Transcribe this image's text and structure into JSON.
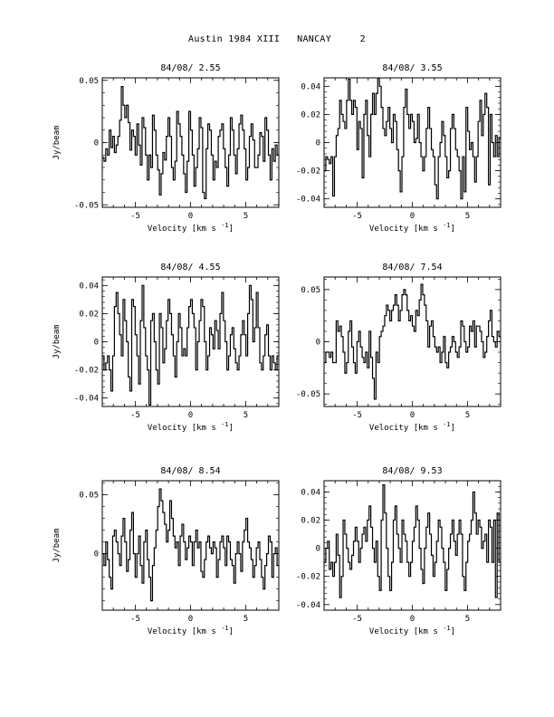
{
  "page_title": "Austin 1984 XIII   NANCAY     2",
  "chart_data": [
    {
      "type": "line",
      "title": "84/08/ 2.55",
      "xlabel": "Velocity [km s",
      "xlabel_sup": "-1",
      "xlabel_close": "]",
      "ylabel": "Jy/beam",
      "xlim": [
        -8,
        8
      ],
      "ylim": [
        -0.052,
        0.052
      ],
      "xticks": [
        {
          "v": -5,
          "label": "-5"
        },
        {
          "v": 0,
          "label": "0"
        },
        {
          "v": 5,
          "label": "5"
        }
      ],
      "yticks": [
        {
          "v": 0.05,
          "label": "0.05"
        },
        {
          "v": 0,
          "label": "0"
        },
        {
          "v": -0.05,
          "label": "-0.05"
        }
      ],
      "series": [
        {
          "values": [
            -0.012,
            -0.015,
            -0.005,
            -0.01,
            0.01,
            -0.004,
            0.005,
            -0.008,
            -0.002,
            0.005,
            0.018,
            0.045,
            0.03,
            0.02,
            0.03,
            0.016,
            -0.006,
            0.01,
            0.005,
            -0.01,
            0.015,
            -0.002,
            -0.018,
            0.02,
            0.012,
            -0.01,
            -0.03,
            -0.01,
            -0.02,
            0.022,
            0.01,
            -0.01,
            -0.022,
            -0.042,
            -0.025,
            -0.008,
            -0.014,
            0.005,
            0.02,
            0.005,
            -0.02,
            -0.03,
            -0.015,
            0.025,
            0.015,
            0.005,
            -0.01,
            -0.025,
            -0.04,
            -0.015,
            0.025,
            0.01,
            -0.01,
            -0.035,
            -0.02,
            -0.005,
            0.02,
            0.012,
            -0.04,
            -0.045,
            -0.005,
            0.015,
            0.01,
            -0.01,
            -0.03,
            -0.015,
            -0.02,
            0.005,
            0.01,
            0.015,
            -0.005,
            -0.02,
            -0.035,
            -0.01,
            0.02,
            0.01,
            -0.01,
            -0.025,
            -0.005,
            0.015,
            0.022,
            0.01,
            -0.005,
            -0.03,
            -0.02,
            0.005,
            0.015,
            0.002,
            -0.02,
            -0.02,
            -0.01,
            0.008,
            0.005,
            -0.015,
            0.02,
            0.01,
            -0.01,
            -0.03,
            -0.005,
            -0.015,
            -0.002,
            -0.01
          ]
        }
      ]
    },
    {
      "type": "line",
      "title": "84/08/ 3.55",
      "xlabel": "Velocity [km s",
      "xlabel_sup": "-1",
      "xlabel_close": "]",
      "ylabel": "",
      "xlim": [
        -8,
        8
      ],
      "ylim": [
        -0.046,
        0.046
      ],
      "xticks": [
        {
          "v": -5,
          "label": "-5"
        },
        {
          "v": 0,
          "label": "0"
        },
        {
          "v": 5,
          "label": "5"
        }
      ],
      "yticks": [
        {
          "v": 0.04,
          "label": "0.04"
        },
        {
          "v": 0.02,
          "label": "0.02"
        },
        {
          "v": 0,
          "label": "0"
        },
        {
          "v": -0.02,
          "label": "-0.02"
        },
        {
          "v": -0.04,
          "label": "-0.04"
        }
      ],
      "series": [
        {
          "values": [
            -0.02,
            -0.01,
            -0.012,
            -0.015,
            -0.01,
            -0.038,
            -0.01,
            0.005,
            0.01,
            0.03,
            0.02,
            0.015,
            0.01,
            0.03,
            0.045,
            0.03,
            0.02,
            0.03,
            0.025,
            -0.005,
            0.015,
            0.01,
            -0.025,
            0.02,
            0.03,
            0.005,
            -0.01,
            0.02,
            0.035,
            0.02,
            0.035,
            0.046,
            0.04,
            0.025,
            0.01,
            0.005,
            0.015,
            0.025,
            0.01,
            0.0,
            0.02,
            0.015,
            -0.005,
            -0.02,
            -0.035,
            -0.01,
            0.025,
            0.038,
            0.02,
            0.01,
            0.02,
            0.015,
            0.0,
            0.003,
            0.02,
            0.0,
            -0.01,
            -0.02,
            -0.01,
            0.01,
            0.025,
            0.01,
            -0.005,
            -0.01,
            -0.03,
            -0.04,
            -0.01,
            0.0,
            0.015,
            0.005,
            -0.01,
            -0.025,
            -0.02,
            0.01,
            0.02,
            0.01,
            -0.005,
            -0.01,
            -0.02,
            -0.04,
            -0.01,
            -0.035,
            0.025,
            0.008,
            -0.005,
            0.0,
            -0.01,
            -0.028,
            -0.01,
            0.015,
            0.03,
            0.005,
            0.02,
            0.035,
            0.025,
            -0.03,
            0.02,
            0.0,
            -0.01,
            0.005,
            -0.01,
            0.003
          ]
        }
      ]
    },
    {
      "type": "line",
      "title": "84/08/ 4.55",
      "xlabel": "Velocity [km s",
      "xlabel_sup": "-1",
      "xlabel_close": "]",
      "ylabel": "Jy/beam",
      "xlim": [
        -8,
        8
      ],
      "ylim": [
        -0.046,
        0.046
      ],
      "xticks": [
        {
          "v": -5,
          "label": "-5"
        },
        {
          "v": 0,
          "label": "0"
        },
        {
          "v": 5,
          "label": "5"
        }
      ],
      "yticks": [
        {
          "v": 0.04,
          "label": "0.04"
        },
        {
          "v": 0.02,
          "label": "0.02"
        },
        {
          "v": 0,
          "label": "0"
        },
        {
          "v": -0.02,
          "label": "-0.02"
        },
        {
          "v": -0.04,
          "label": "-0.04"
        }
      ],
      "series": [
        {
          "values": [
            -0.01,
            -0.02,
            -0.015,
            -0.01,
            -0.02,
            -0.035,
            -0.01,
            0.025,
            0.035,
            0.02,
            0.005,
            -0.01,
            0.03,
            0.015,
            0.0,
            -0.025,
            -0.035,
            0.03,
            0.025,
            0.005,
            -0.01,
            -0.03,
            0.015,
            0.04,
            0.01,
            -0.01,
            -0.02,
            -0.045,
            0.015,
            0.02,
            0.0,
            -0.02,
            -0.03,
            0.02,
            0.01,
            -0.015,
            -0.005,
            0.015,
            0.03,
            0.02,
            0.005,
            -0.01,
            -0.025,
            0.0,
            0.02,
            0.01,
            -0.01,
            -0.005,
            -0.01,
            0.01,
            0.025,
            0.03,
            0.02,
            0.01,
            -0.02,
            0.0,
            0.015,
            0.03,
            0.025,
            0.0,
            -0.02,
            -0.01,
            0.01,
            0.005,
            -0.005,
            0.015,
            0.008,
            -0.005,
            0.02,
            0.035,
            0.015,
            0.0,
            -0.02,
            -0.01,
            0.005,
            0.01,
            -0.005,
            -0.015,
            -0.02,
            -0.01,
            0.005,
            0.015,
            0.005,
            -0.01,
            0.02,
            0.04,
            0.03,
            0.0,
            0.01,
            0.035,
            0.01,
            -0.015,
            -0.02,
            -0.01,
            0.005,
            0.012,
            -0.01,
            -0.02,
            -0.01,
            -0.015,
            -0.02,
            -0.01
          ]
        }
      ]
    },
    {
      "type": "line",
      "title": "84/08/ 7.54",
      "xlabel": "Velocity [km s",
      "xlabel_sup": "-1",
      "xlabel_close": "]",
      "ylabel": "",
      "xlim": [
        -8,
        8
      ],
      "ylim": [
        -0.062,
        0.062
      ],
      "xticks": [
        {
          "v": -5,
          "label": "-5"
        },
        {
          "v": 0,
          "label": "0"
        },
        {
          "v": 5,
          "label": "5"
        }
      ],
      "yticks": [
        {
          "v": 0.05,
          "label": "0.05"
        },
        {
          "v": 0,
          "label": "0"
        },
        {
          "v": -0.05,
          "label": "-0.05"
        }
      ],
      "series": [
        {
          "values": [
            -0.02,
            -0.01,
            -0.01,
            -0.015,
            -0.01,
            -0.02,
            -0.02,
            0.02,
            0.01,
            0.015,
            0.005,
            -0.01,
            -0.03,
            -0.02,
            0.01,
            0.02,
            -0.005,
            -0.02,
            -0.03,
            0.0,
            0.01,
            -0.005,
            -0.015,
            -0.02,
            -0.01,
            -0.025,
            0.01,
            -0.015,
            -0.035,
            -0.055,
            -0.01,
            -0.02,
            0.005,
            0.01,
            0.015,
            0.025,
            0.035,
            0.03,
            0.02,
            0.03,
            0.035,
            0.045,
            0.035,
            0.02,
            0.03,
            0.045,
            0.05,
            0.045,
            0.03,
            0.02,
            0.025,
            0.015,
            0.01,
            0.03,
            0.025,
            0.04,
            0.055,
            0.045,
            0.035,
            0.02,
            -0.005,
            0.015,
            0.02,
            0.005,
            -0.005,
            -0.01,
            -0.005,
            -0.02,
            -0.01,
            0.005,
            -0.02,
            -0.025,
            -0.01,
            -0.005,
            0.005,
            0.0,
            -0.01,
            -0.015,
            -0.005,
            0.02,
            0.015,
            0.0,
            -0.01,
            -0.005,
            0.015,
            0.01,
            0.02,
            -0.005,
            0.015,
            0.015,
            0.01,
            0.0,
            -0.015,
            -0.01,
            0.005,
            0.02,
            0.03,
            0.005,
            0.0,
            -0.005,
            0.01,
            0.005
          ]
        }
      ]
    },
    {
      "type": "line",
      "title": "84/08/ 8.54",
      "xlabel": "Velocity [km s",
      "xlabel_sup": "-1",
      "xlabel_close": "]",
      "ylabel": "Jy/beam",
      "xlim": [
        -8,
        8
      ],
      "ylim": [
        -0.048,
        0.062
      ],
      "xticks": [
        {
          "v": -5,
          "label": "-5"
        },
        {
          "v": 0,
          "label": "0"
        },
        {
          "v": 5,
          "label": "5"
        }
      ],
      "yticks": [
        {
          "v": 0.05,
          "label": "0.05"
        },
        {
          "v": 0,
          "label": "0"
        }
      ],
      "series": [
        {
          "values": [
            0.0,
            -0.01,
            0.01,
            -0.005,
            -0.02,
            -0.03,
            0.015,
            0.02,
            0.01,
            0.0,
            -0.01,
            0.015,
            0.03,
            0.01,
            -0.015,
            -0.005,
            0.02,
            0.035,
            0.0,
            -0.02,
            0.0,
            0.015,
            -0.01,
            -0.025,
            0.01,
            0.02,
            -0.005,
            -0.02,
            -0.04,
            -0.01,
            0.005,
            0.02,
            0.04,
            0.055,
            0.045,
            0.035,
            0.025,
            0.01,
            0.02,
            0.045,
            0.03,
            0.015,
            0.005,
            0.01,
            -0.01,
            0.015,
            0.025,
            0.01,
            -0.005,
            0.005,
            0.015,
            0.01,
            -0.01,
            0.01,
            0.02,
            0.005,
            0.01,
            -0.015,
            -0.02,
            -0.005,
            0.01,
            0.015,
            0.005,
            0.0,
            0.01,
            0.005,
            -0.02,
            -0.005,
            0.01,
            0.015,
            0.005,
            -0.01,
            0.015,
            0.01,
            -0.005,
            -0.01,
            -0.025,
            0.0,
            0.01,
            0.0,
            -0.015,
            0.01,
            0.02,
            0.03,
            0.01,
            0.005,
            -0.005,
            -0.02,
            -0.01,
            0.005,
            0.01,
            -0.005,
            -0.02,
            -0.03,
            -0.01,
            0.0,
            0.015,
            0.01,
            -0.02,
            0.0,
            0.005,
            -0.01
          ]
        }
      ]
    },
    {
      "type": "line",
      "title": "84/08/ 9.53",
      "xlabel": "Velocity [km s",
      "xlabel_sup": "-1",
      "xlabel_close": "]",
      "ylabel": "",
      "xlim": [
        -8,
        8
      ],
      "ylim": [
        -0.044,
        0.048
      ],
      "xticks": [
        {
          "v": -5,
          "label": "-5"
        },
        {
          "v": 0,
          "label": "0"
        },
        {
          "v": 5,
          "label": "5"
        }
      ],
      "yticks": [
        {
          "v": 0.04,
          "label": "0.04"
        },
        {
          "v": 0.02,
          "label": "0.02"
        },
        {
          "v": 0,
          "label": "0"
        },
        {
          "v": -0.02,
          "label": "-0.02"
        },
        {
          "v": -0.04,
          "label": "-0.04"
        }
      ],
      "series": [
        {
          "values": [
            -0.01,
            0.0,
            0.005,
            -0.015,
            -0.01,
            -0.02,
            -0.01,
            0.01,
            -0.005,
            -0.035,
            -0.02,
            0.02,
            0.01,
            0.0,
            -0.01,
            -0.015,
            -0.005,
            0.005,
            0.015,
            0.005,
            -0.01,
            0.0,
            0.01,
            0.015,
            0.005,
            0.02,
            0.03,
            0.015,
            0.0,
            -0.01,
            0.005,
            -0.02,
            -0.03,
            0.02,
            0.045,
            0.025,
            0.0,
            -0.02,
            -0.03,
            -0.01,
            0.02,
            0.03,
            0.01,
            0.0,
            -0.01,
            0.02,
            0.01,
            0.005,
            -0.01,
            -0.02,
            -0.01,
            0.005,
            0.015,
            0.03,
            0.02,
            0.0,
            -0.015,
            -0.025,
            0.0,
            0.015,
            0.025,
            0.01,
            -0.005,
            -0.02,
            -0.01,
            0.005,
            0.02,
            0.015,
            0.0,
            -0.01,
            -0.03,
            -0.015,
            0.0,
            0.01,
            0.02,
            0.005,
            -0.005,
            0.01,
            0.02,
            0.01,
            -0.02,
            -0.03,
            -0.01,
            0.005,
            0.01,
            0.02,
            0.04,
            0.025,
            0.01,
            0.02,
            0.015,
            0.0,
            0.005,
            0.01,
            -0.01,
            0.02,
            0.015,
            -0.01,
            0.02,
            -0.035,
            0.025,
            -0.01
          ]
        }
      ]
    }
  ]
}
